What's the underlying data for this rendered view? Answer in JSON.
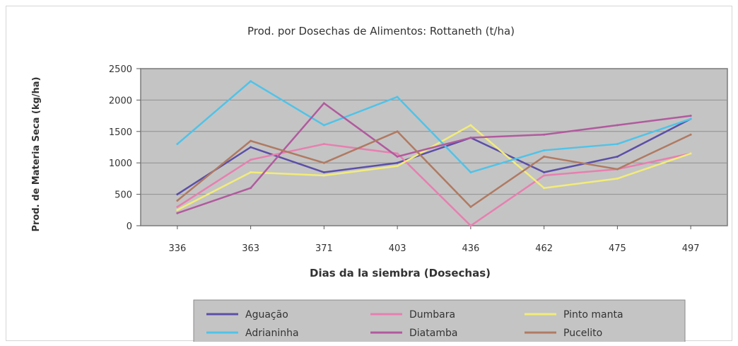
{
  "chart_data": {
    "type": "line",
    "title": "Prod. por Dosechas de Alimentos: Rottaneth (t/ha)",
    "xlabel": "Dias da la siembra (Dosechas)",
    "ylabel": "Prod. de Materia Seca (kg/ha)",
    "categories": [
      "336",
      "363",
      "371",
      "403",
      "436",
      "462",
      "475",
      "497"
    ],
    "ylim": [
      0,
      2500
    ],
    "yticks": [
      "0",
      "500",
      "1000",
      "1500",
      "2000",
      "2500"
    ],
    "grid": true,
    "legend_position": "bottom",
    "series": [
      {
        "name": "Aguação",
        "color": "#5b4fa8",
        "values": [
          500,
          1250,
          850,
          1000,
          1400,
          850,
          1100,
          1700
        ]
      },
      {
        "name": "Dumbara",
        "color": "#e77fb0",
        "values": [
          300,
          1050,
          1300,
          1150,
          0,
          800,
          900,
          1150
        ]
      },
      {
        "name": "Pinto manta",
        "color": "#f2ec78",
        "values": [
          250,
          850,
          800,
          950,
          1600,
          600,
          750,
          1150
        ]
      },
      {
        "name": "Adrianinha",
        "color": "#4fc3e8",
        "values": [
          1300,
          2300,
          1600,
          2050,
          850,
          1200,
          1300,
          1700
        ]
      },
      {
        "name": "Diatamba",
        "color": "#b15a9e",
        "values": [
          200,
          600,
          1950,
          1100,
          1400,
          1450,
          1600,
          1750
        ]
      },
      {
        "name": "Pucelito",
        "color": "#b07a62",
        "values": [
          400,
          1350,
          1000,
          1500,
          300,
          1100,
          900,
          1450
        ]
      }
    ]
  }
}
